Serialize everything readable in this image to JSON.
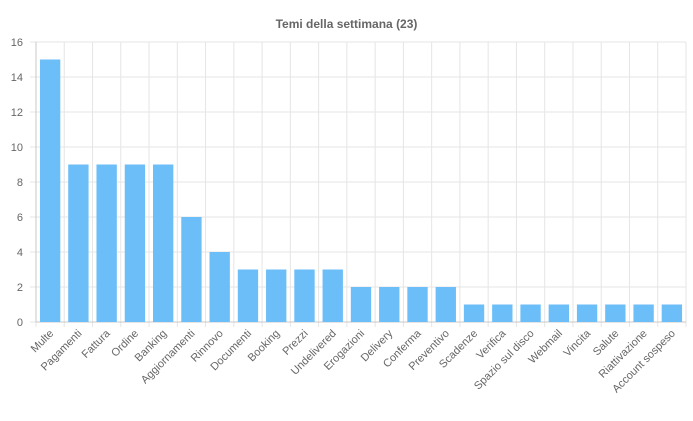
{
  "chart_data": {
    "type": "bar",
    "title": "Temi della settimana (23)",
    "xlabel": "",
    "ylabel": "",
    "ylim": [
      0,
      16
    ],
    "yticks": [
      0,
      2,
      4,
      6,
      8,
      10,
      12,
      14,
      16
    ],
    "grid": true,
    "legend": "none",
    "bar_color": "#6cbef8",
    "grid_color": "#e5e5e5",
    "text_color": "#666666",
    "categories": [
      "Multe",
      "Pagamenti",
      "Fattura",
      "Ordine",
      "Banking",
      "Aggiornamenti",
      "Rinnovo",
      "Documenti",
      "Booking",
      "Prezzi",
      "Undelivered",
      "Erogazioni",
      "Delivery",
      "Conferma",
      "Preventivo",
      "Scadenze",
      "Verifica",
      "Spazio sul disco",
      "Webmail",
      "Vincita",
      "Salute",
      "Riattivazione",
      "Account sospeso"
    ],
    "values": [
      15,
      9,
      9,
      9,
      9,
      6,
      4,
      3,
      3,
      3,
      3,
      2,
      2,
      2,
      2,
      1,
      1,
      1,
      1,
      1,
      1,
      1,
      1
    ]
  }
}
